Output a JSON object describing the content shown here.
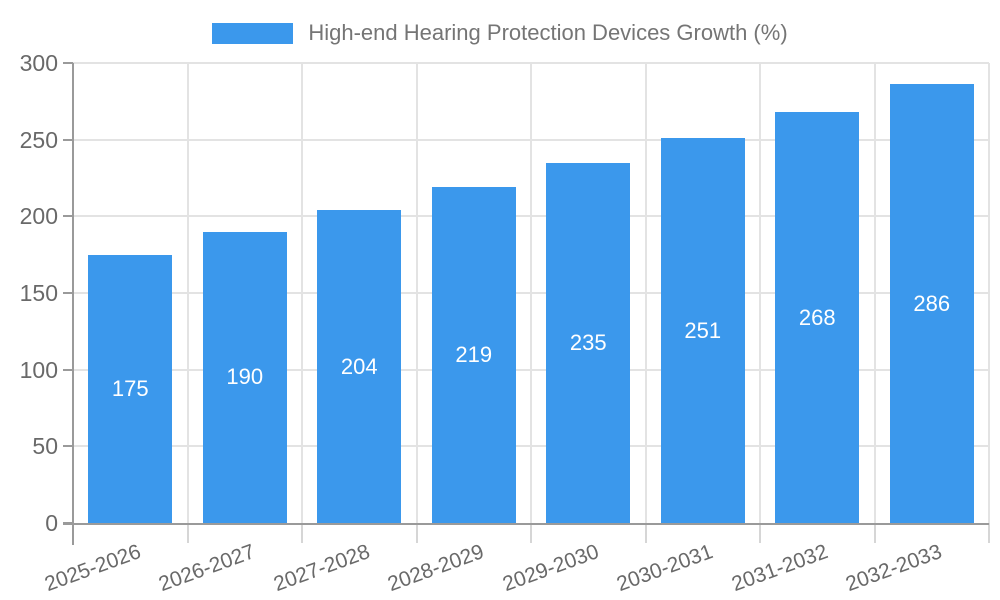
{
  "chart_data": {
    "type": "bar",
    "title": "High-end Hearing Protection Devices Growth (%)",
    "categories": [
      "2025-2026",
      "2026-2027",
      "2027-2028",
      "2028-2029",
      "2029-2030",
      "2030-2031",
      "2031-2032",
      "2032-2033"
    ],
    "values": [
      175,
      190,
      204,
      219,
      235,
      251,
      268,
      286
    ],
    "xlabel": "",
    "ylabel": "",
    "ylim": [
      0,
      300
    ],
    "yticks": [
      0,
      50,
      100,
      150,
      200,
      250,
      300
    ],
    "grid": true,
    "legend_position": "top-center",
    "value_labels": "inside-center",
    "colors": {
      "bar": "#3b98ec",
      "value_label": "#ffffff",
      "axis": "#9a9a9a",
      "gridline": "#e3e3e3",
      "boundary_tick": "#d6d6d6",
      "tick_text": "#696969",
      "legend_text": "#757575"
    }
  }
}
